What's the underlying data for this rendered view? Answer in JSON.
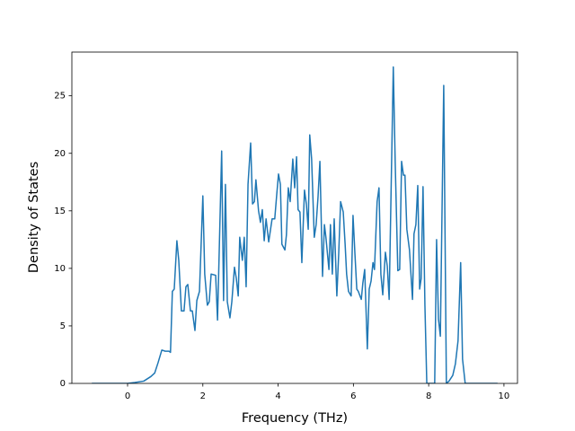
{
  "chart_data": {
    "type": "line",
    "x_label": "Frequency (THz)",
    "y_label": "Density of States",
    "xlim": [
      -1.48,
      10.36
    ],
    "ylim": [
      0,
      28.8
    ],
    "xticks": [
      0,
      2,
      4,
      6,
      8,
      10
    ],
    "yticks": [
      0,
      5,
      10,
      15,
      20,
      25
    ],
    "grid": false,
    "series": [
      {
        "color": "#1f77b4",
        "x": [
          -0.95,
          0,
          0.19,
          0.43,
          0.62,
          0.72,
          0.81,
          0.91,
          1.0,
          1.1,
          1.14,
          1.19,
          1.24,
          1.31,
          1.36,
          1.43,
          1.5,
          1.55,
          1.6,
          1.67,
          1.72,
          1.79,
          1.84,
          1.91,
          2.0,
          2.05,
          2.12,
          2.17,
          2.22,
          2.34,
          2.39,
          2.5,
          2.55,
          2.6,
          2.65,
          2.72,
          2.77,
          2.84,
          2.89,
          2.94,
          2.98,
          3.05,
          3.1,
          3.15,
          3.2,
          3.27,
          3.32,
          3.37,
          3.41,
          3.48,
          3.53,
          3.58,
          3.63,
          3.68,
          3.75,
          3.79,
          3.84,
          3.91,
          3.96,
          4.01,
          4.06,
          4.1,
          4.18,
          4.22,
          4.27,
          4.32,
          4.39,
          4.44,
          4.49,
          4.53,
          4.58,
          4.63,
          4.7,
          4.75,
          4.8,
          4.84,
          4.89,
          4.96,
          5.01,
          5.06,
          5.11,
          5.18,
          5.23,
          5.27,
          5.35,
          5.39,
          5.44,
          5.49,
          5.56,
          5.61,
          5.66,
          5.73,
          5.78,
          5.82,
          5.87,
          5.94,
          5.99,
          6.04,
          6.09,
          6.13,
          6.21,
          6.25,
          6.3,
          6.37,
          6.42,
          6.47,
          6.52,
          6.56,
          6.63,
          6.68,
          6.73,
          6.78,
          6.85,
          6.9,
          6.95,
          6.99,
          7.06,
          7.11,
          7.18,
          7.23,
          7.28,
          7.33,
          7.37,
          7.42,
          7.49,
          7.57,
          7.61,
          7.66,
          7.71,
          7.76,
          7.8,
          7.85,
          7.9,
          7.95,
          8.16,
          8.21,
          8.26,
          8.31,
          8.4,
          8.47,
          8.54,
          8.64,
          8.71,
          8.78,
          8.85,
          8.9,
          8.97,
          9.83
        ],
        "values": [
          0,
          0,
          0.08,
          0.2,
          0.6,
          0.9,
          1.8,
          2.9,
          2.8,
          2.8,
          2.7,
          8.0,
          8.2,
          12.4,
          10.7,
          6.3,
          6.3,
          8.4,
          8.6,
          6.3,
          6.3,
          4.6,
          7.2,
          8.0,
          16.3,
          9.5,
          6.8,
          7.1,
          9.5,
          9.4,
          5.5,
          20.2,
          7.2,
          17.3,
          7.1,
          5.7,
          7.1,
          10.1,
          9.1,
          7.6,
          12.7,
          10.7,
          12.7,
          8.4,
          17.3,
          20.9,
          15.6,
          15.8,
          17.7,
          15.0,
          14.0,
          15.1,
          12.4,
          14.3,
          12.3,
          13.2,
          14.3,
          14.3,
          16.3,
          18.2,
          17.3,
          12.1,
          11.6,
          12.9,
          17.0,
          15.8,
          19.5,
          17.0,
          19.7,
          15.1,
          14.9,
          10.5,
          16.8,
          15.6,
          13.4,
          21.6,
          19.5,
          12.7,
          13.8,
          16.2,
          19.3,
          9.3,
          13.8,
          12.7,
          9.9,
          13.8,
          9.5,
          14.3,
          7.6,
          11.3,
          15.8,
          14.9,
          12.1,
          9.5,
          8.0,
          7.6,
          14.6,
          11.3,
          8.2,
          8.0,
          7.3,
          8.7,
          9.9,
          3.0,
          8.2,
          8.9,
          10.5,
          9.9,
          15.8,
          17.0,
          9.5,
          7.7,
          11.4,
          10.2,
          7.3,
          14.6,
          27.5,
          19.3,
          9.8,
          9.9,
          19.3,
          18.1,
          18.1,
          13.4,
          11.6,
          7.3,
          13.0,
          13.8,
          17.2,
          8.2,
          9.1,
          17.1,
          6.8,
          0,
          0,
          12.5,
          5.6,
          4.1,
          25.9,
          0,
          0.2,
          0.7,
          1.7,
          3.7,
          10.5,
          2.1,
          0,
          0
        ]
      }
    ]
  }
}
